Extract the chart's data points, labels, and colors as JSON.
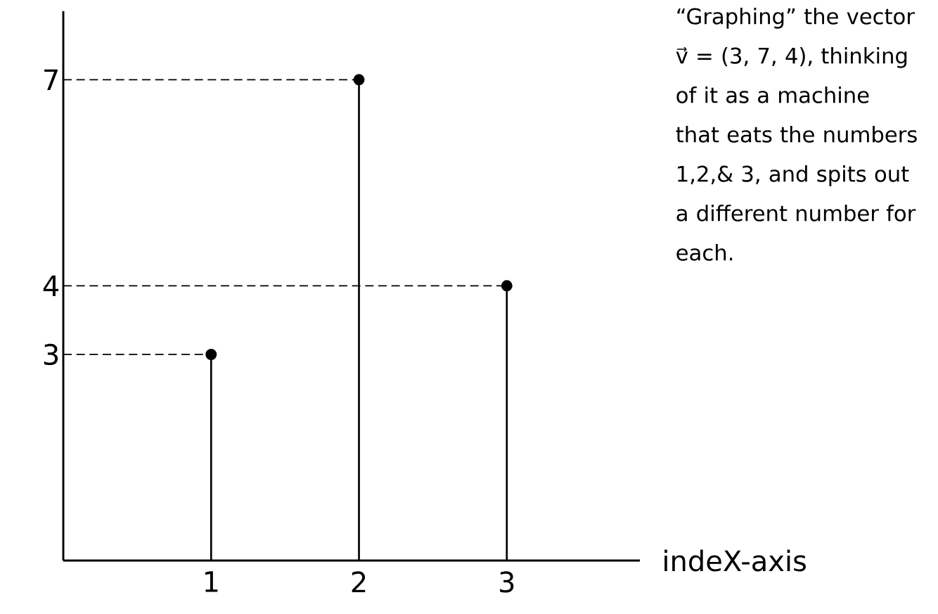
{
  "chart_data": {
    "type": "lollipop",
    "x": [
      1,
      2,
      3
    ],
    "values": [
      3,
      7,
      4
    ],
    "color": "#000000",
    "marker": "circle",
    "xlim": [
      0,
      3.9
    ],
    "xticks": [
      1,
      2,
      3
    ],
    "ylim": [
      0,
      8
    ],
    "yticks": [
      3,
      4,
      7
    ],
    "xlabel": "indeX-axis",
    "ref_lines": [
      {
        "axis": "y",
        "value": 3,
        "line_style": "dashed"
      },
      {
        "axis": "y",
        "value": 4,
        "line_style": "dashed"
      },
      {
        "axis": "y",
        "value": 7,
        "line_style": "dashed"
      }
    ],
    "annotations": [
      "“Graphing” the vector v⃗ = (3, 7, 4), thinking of it as a machine that eats the numbers 1,2,& 3, and spits out a different number for each."
    ]
  }
}
